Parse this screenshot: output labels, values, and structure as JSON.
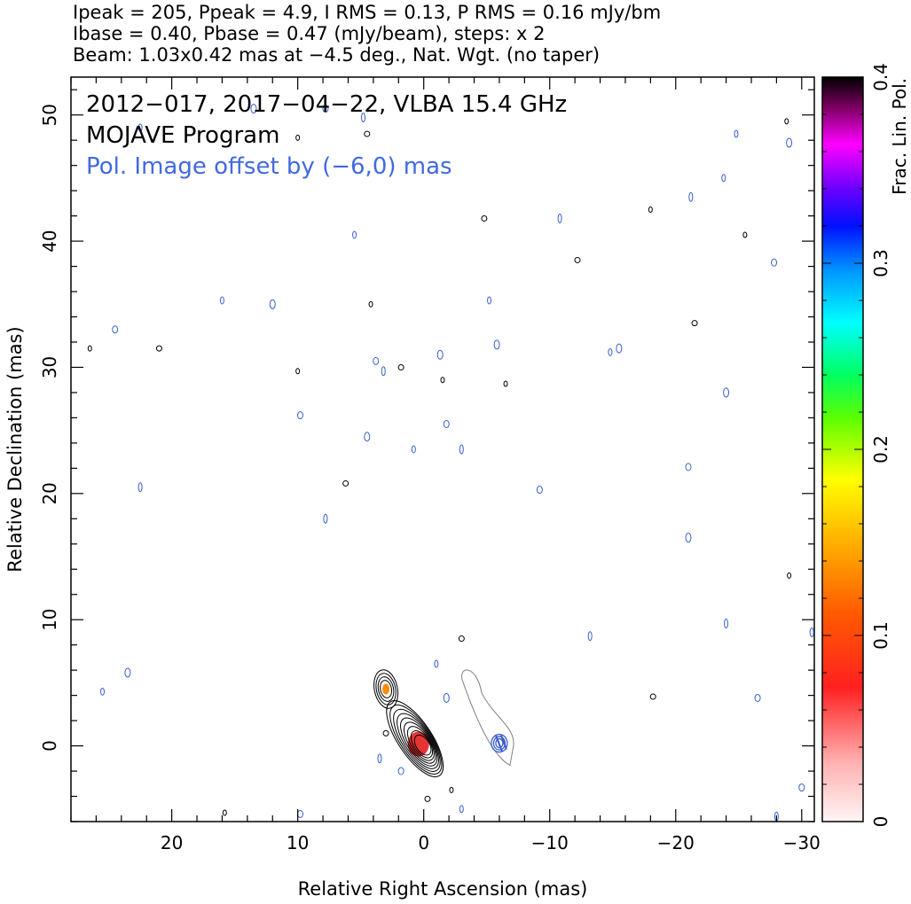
{
  "header": {
    "line1": "Ipeak = 205, Ppeak = 4.9, I RMS = 0.13, P RMS = 0.16 mJy/bm",
    "line2": "Ibase = 0.40, Pbase = 0.47 (mJy/beam), steps: x 2",
    "line3": "Beam: 1.03x0.42 mas at −4.5 deg., Nat. Wgt. (no taper)"
  },
  "annotations": {
    "line1": "2012−017, 2017−04−22, VLBA 15.4 GHz",
    "line2": "MOJAVE Program",
    "line3": "Pol. Image offset by (−6,0) mas"
  },
  "colors": {
    "total_intensity_contour": "#000000",
    "pol_offset_contour": "#808080",
    "pol_vector_contour": "#3a5fcd",
    "annotation_blue": "#4169e1"
  },
  "chart_data": {
    "type": "heatmap",
    "xlabel": "Relative Right Ascension (mas)",
    "ylabel": "Relative Declination (mas)",
    "xlim": [
      28,
      -31
    ],
    "ylim": [
      -6,
      53
    ],
    "xticks": [
      20,
      10,
      0,
      -10,
      -20,
      -30
    ],
    "xtick_labels": [
      "20",
      "10",
      "0",
      "−10",
      "−20",
      "−30"
    ],
    "yticks": [
      0,
      10,
      20,
      30,
      40,
      50
    ],
    "ytick_labels": [
      "0",
      "10",
      "20",
      "30",
      "40",
      "50"
    ],
    "colorbar": {
      "label": "Frac. Lin. Pol.",
      "range": [
        0,
        0.4
      ],
      "ticks": [
        0,
        0.1,
        0.2,
        0.3,
        0.4
      ],
      "tick_labels": [
        "0",
        "0.1",
        "0.2",
        "0.3",
        "0.4"
      ]
    },
    "core": {
      "x": 0,
      "y": 0,
      "frac_pol": 0.04
    },
    "jet_knot": {
      "x": 3,
      "y": 4.5,
      "frac_pol": 0.12
    },
    "contour_levels_count": 9,
    "noise_blobs": [
      [
        26.5,
        31.5
      ],
      [
        24.5,
        33
      ],
      [
        22.5,
        20.5
      ],
      [
        21,
        31.5
      ],
      [
        16,
        35.3
      ],
      [
        12,
        35
      ],
      [
        10,
        29.7
      ],
      [
        9.8,
        26.2
      ],
      [
        7.8,
        18
      ],
      [
        6.2,
        20.8
      ],
      [
        5.5,
        40.5
      ],
      [
        4.5,
        24.5
      ],
      [
        4.2,
        35
      ],
      [
        3.8,
        30.5
      ],
      [
        3.2,
        29.7
      ],
      [
        1.8,
        30
      ],
      [
        0.8,
        23.5
      ],
      [
        -1.3,
        31
      ],
      [
        -1.5,
        29
      ],
      [
        -1.8,
        25.5
      ],
      [
        -3,
        23.5
      ],
      [
        -4.8,
        41.8
      ],
      [
        -5.2,
        35.3
      ],
      [
        -5.8,
        31.8
      ],
      [
        -6.5,
        28.7
      ],
      [
        -9.2,
        20.3
      ],
      [
        -10.8,
        41.8
      ],
      [
        -12.2,
        38.5
      ],
      [
        -14.8,
        31.2
      ],
      [
        -15.5,
        31.5
      ],
      [
        -18,
        42.5
      ],
      [
        -21,
        22.1
      ],
      [
        -21.2,
        43.5
      ],
      [
        -21.5,
        33.5
      ],
      [
        -23.8,
        45
      ],
      [
        -24,
        28
      ],
      [
        -25.5,
        40.5
      ],
      [
        -27.8,
        38.3
      ],
      [
        -13.2,
        8.7
      ],
      [
        -3,
        8.5
      ],
      [
        -1,
        6.5
      ],
      [
        -1.8,
        3.8
      ],
      [
        -2.2,
        -3.5
      ],
      [
        1.8,
        -2
      ],
      [
        3.5,
        -1
      ],
      [
        3,
        1
      ],
      [
        22.5,
        49
      ],
      [
        13.5,
        50.5
      ],
      [
        10,
        48.2
      ],
      [
        7.8,
        50.5
      ],
      [
        4.8,
        49.8
      ],
      [
        4.5,
        48.5
      ],
      [
        -24.8,
        48.5
      ],
      [
        -29,
        47.8
      ],
      [
        -28.8,
        49.5
      ],
      [
        -26.5,
        3.8
      ],
      [
        -24,
        9.7
      ],
      [
        -18.2,
        3.9
      ],
      [
        25.5,
        4.3
      ],
      [
        23.5,
        5.8
      ],
      [
        15.8,
        -5.3
      ],
      [
        9.8,
        -5.4
      ],
      [
        -28,
        -5.6
      ],
      [
        -0.3,
        -4.2
      ],
      [
        -3,
        -5
      ],
      [
        -21,
        16.5
      ],
      [
        -29,
        13.5
      ],
      [
        -30,
        -3.3
      ],
      [
        -30.8,
        9
      ]
    ]
  }
}
